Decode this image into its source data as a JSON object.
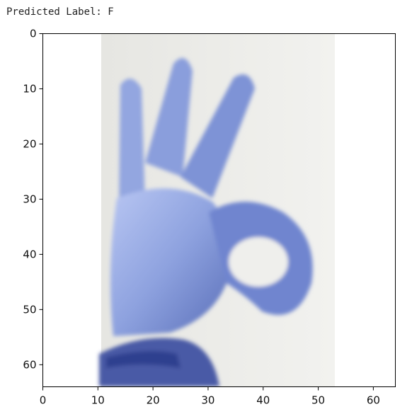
{
  "output": {
    "prediction_prefix": "Predicted Label:",
    "predicted_label": "F"
  },
  "plot": {
    "x_ticks": [
      "0",
      "10",
      "20",
      "30",
      "40",
      "50",
      "60"
    ],
    "y_ticks": [
      "0",
      "10",
      "20",
      "30",
      "40",
      "50",
      "60"
    ],
    "xlim": [
      0,
      64
    ],
    "ylim": [
      64,
      0
    ]
  },
  "image_content": {
    "subject": "gloved hand making the F hand sign",
    "glove_color": "#7f95d6",
    "background_color": "#ededea"
  }
}
